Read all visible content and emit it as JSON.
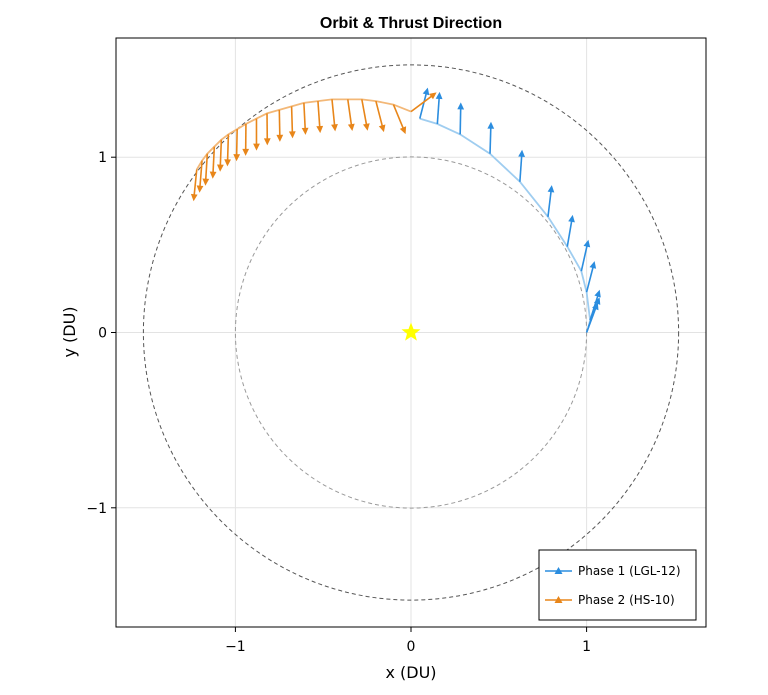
{
  "chart_data": {
    "type": "line",
    "title": "Orbit & Thrust Direction",
    "xlabel": "x  (DU)",
    "ylabel": "y  (DU)",
    "xlim": [
      -1.68,
      1.68
    ],
    "ylim": [
      -1.68,
      1.68
    ],
    "aspect": "equal",
    "grid": true,
    "xticks": [
      -1,
      0,
      1
    ],
    "yticks": [
      -1,
      0,
      1
    ],
    "xtick_labels": [
      "−1",
      "0",
      "1"
    ],
    "ytick_labels": [
      "−1",
      "0",
      "1"
    ],
    "legend_position": "bottom-right",
    "central_body": {
      "x": 0,
      "y": 0,
      "marker": "star",
      "color": "#FFFF00"
    },
    "reference_orbits": [
      {
        "radius": 1.0,
        "style": "dashed",
        "color": "#9a9a9a"
      },
      {
        "radius": 1.524,
        "style": "dashed",
        "color": "#555555"
      }
    ],
    "series": [
      {
        "name": "Phase 1  (LGL-12)",
        "color": "#2b8ddf",
        "trajectory_color": "#9fcdf0",
        "points": [
          {
            "x": 1.0,
            "y": 0.0,
            "ux": 0.35,
            "uy": 0.94
          },
          {
            "x": 1.01,
            "y": 0.03,
            "ux": 0.35,
            "uy": 0.94
          },
          {
            "x": 1.02,
            "y": 0.07,
            "ux": 0.3,
            "uy": 0.95
          },
          {
            "x": 1.0,
            "y": 0.23,
            "ux": 0.25,
            "uy": 0.97
          },
          {
            "x": 0.97,
            "y": 0.35,
            "ux": 0.22,
            "uy": 0.98
          },
          {
            "x": 0.89,
            "y": 0.49,
            "ux": 0.17,
            "uy": 0.99
          },
          {
            "x": 0.78,
            "y": 0.66,
            "ux": 0.12,
            "uy": 0.99
          },
          {
            "x": 0.62,
            "y": 0.86,
            "ux": 0.07,
            "uy": 1.0
          },
          {
            "x": 0.45,
            "y": 1.02,
            "ux": 0.03,
            "uy": 1.0
          },
          {
            "x": 0.28,
            "y": 1.13,
            "ux": 0.02,
            "uy": 1.0
          },
          {
            "x": 0.15,
            "y": 1.19,
            "ux": 0.07,
            "uy": 1.0
          },
          {
            "x": 0.05,
            "y": 1.22,
            "ux": 0.25,
            "uy": 0.97
          }
        ]
      },
      {
        "name": "Phase 2  (HS-10)",
        "color": "#e8861a",
        "trajectory_color": "#f3b878",
        "points": [
          {
            "x": 0.0,
            "y": 1.26,
            "ux": 0.8,
            "uy": 0.6
          },
          {
            "x": -0.1,
            "y": 1.3,
            "ux": 0.38,
            "uy": -0.92
          },
          {
            "x": -0.2,
            "y": 1.32,
            "ux": 0.25,
            "uy": -0.97
          },
          {
            "x": -0.28,
            "y": 1.33,
            "ux": 0.18,
            "uy": -0.98
          },
          {
            "x": -0.36,
            "y": 1.33,
            "ux": 0.14,
            "uy": -0.99
          },
          {
            "x": -0.45,
            "y": 1.33,
            "ux": 0.1,
            "uy": -1.0
          },
          {
            "x": -0.53,
            "y": 1.32,
            "ux": 0.07,
            "uy": -1.0
          },
          {
            "x": -0.61,
            "y": 1.31,
            "ux": 0.05,
            "uy": -1.0
          },
          {
            "x": -0.68,
            "y": 1.29,
            "ux": 0.03,
            "uy": -1.0
          },
          {
            "x": -0.75,
            "y": 1.27,
            "ux": 0.02,
            "uy": -1.0
          },
          {
            "x": -0.82,
            "y": 1.25,
            "ux": 0.01,
            "uy": -1.0
          },
          {
            "x": -0.88,
            "y": 1.22,
            "ux": 0.0,
            "uy": -1.0
          },
          {
            "x": -0.94,
            "y": 1.19,
            "ux": -0.01,
            "uy": -1.0
          },
          {
            "x": -0.99,
            "y": 1.16,
            "ux": -0.02,
            "uy": -1.0
          },
          {
            "x": -1.04,
            "y": 1.13,
            "ux": -0.03,
            "uy": -1.0
          },
          {
            "x": -1.08,
            "y": 1.1,
            "ux": -0.04,
            "uy": -1.0
          },
          {
            "x": -1.12,
            "y": 1.06,
            "ux": -0.05,
            "uy": -1.0
          },
          {
            "x": -1.16,
            "y": 1.02,
            "ux": -0.06,
            "uy": -1.0
          },
          {
            "x": -1.19,
            "y": 0.98,
            "ux": -0.08,
            "uy": -1.0
          },
          {
            "x": -1.22,
            "y": 0.93,
            "ux": -0.1,
            "uy": -0.99
          }
        ]
      }
    ]
  }
}
